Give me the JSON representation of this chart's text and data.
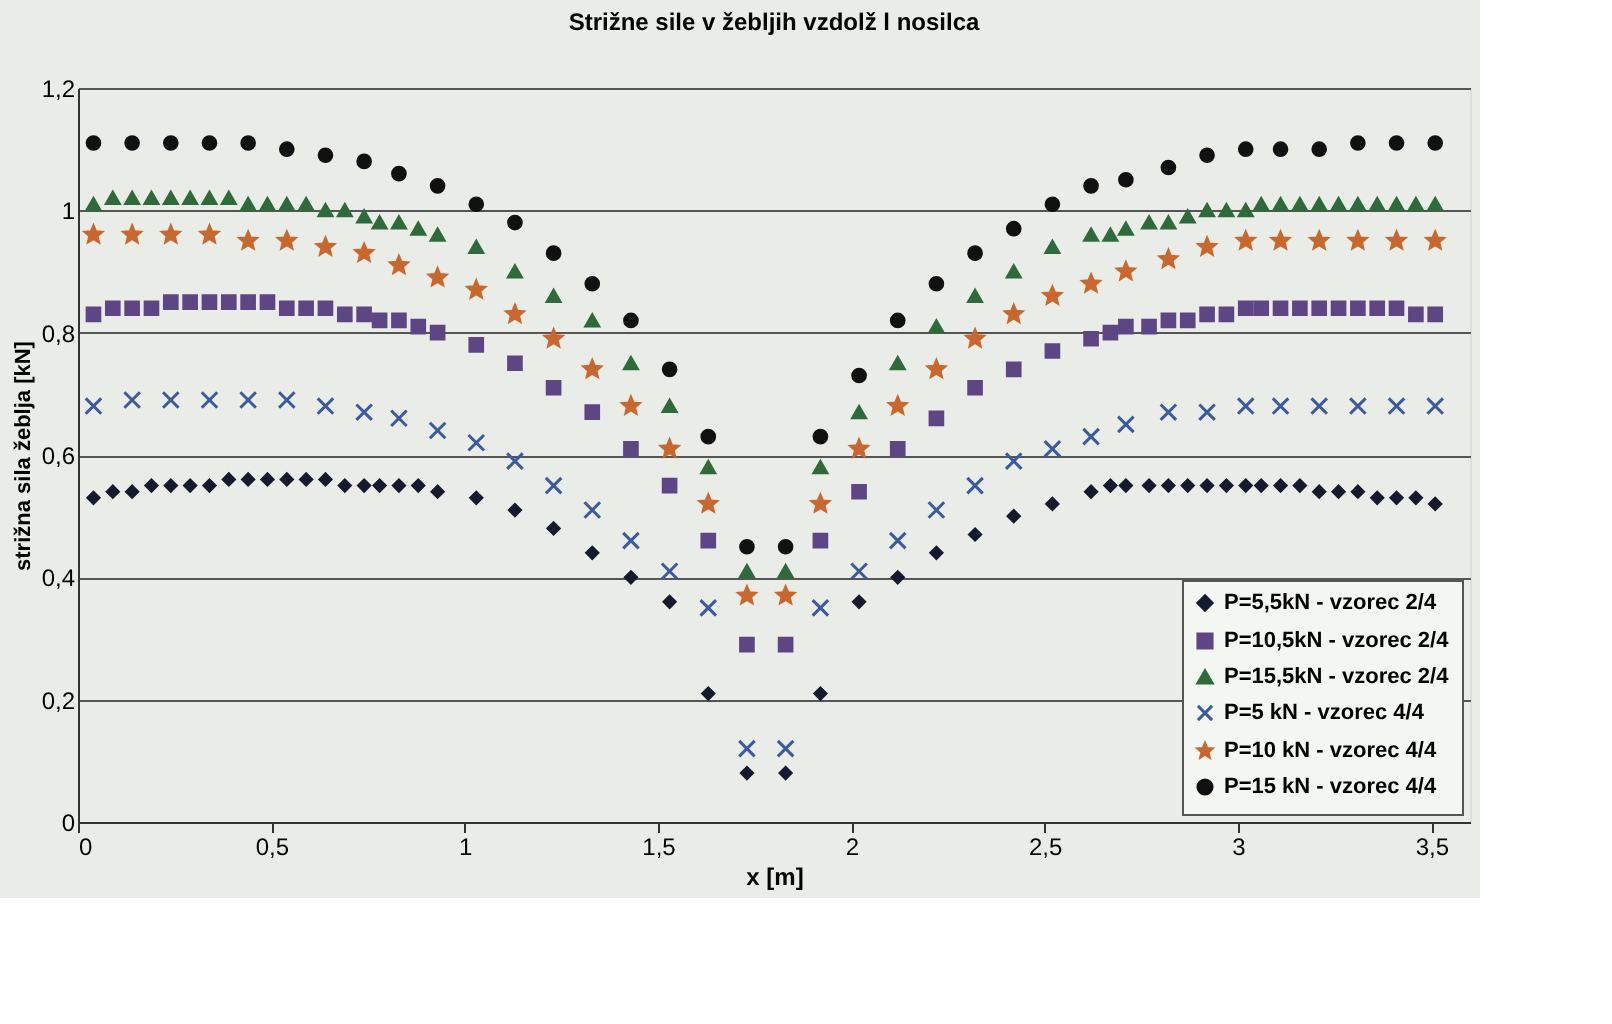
{
  "chart_data": {
    "type": "scatter",
    "title": "Strižne sile v žebljih vzdolž l nosilca",
    "xlabel": "x [m]",
    "ylabel": "strižna sila žeblja [kN]",
    "xlim": [
      0,
      3.6
    ],
    "ylim": [
      0,
      1.2
    ],
    "xticks": [
      0,
      {
        "value": 0.5,
        "label": "0,5"
      },
      1,
      {
        "value": 1.5,
        "label": "1,5"
      },
      2,
      {
        "value": 2.5,
        "label": "2,5"
      },
      3,
      {
        "value": 3.5,
        "label": "3,5"
      }
    ],
    "yticks": [
      0,
      {
        "value": 0.2,
        "label": "0,2"
      },
      {
        "value": 0.4,
        "label": "0,4"
      },
      {
        "value": 0.6,
        "label": "0,6"
      },
      {
        "value": 0.8,
        "label": "0,8"
      },
      1,
      {
        "value": 1.2,
        "label": "1,2"
      }
    ],
    "grid": "y",
    "legend": "bottom right",
    "series": [
      {
        "name": "P=5,5kN - vzorec 2/4",
        "color": "#151a2e",
        "marker": "diamond",
        "x": [
          0.04,
          0.09,
          0.14,
          0.19,
          0.24,
          0.29,
          0.34,
          0.39,
          0.44,
          0.49,
          0.54,
          0.59,
          0.64,
          0.69,
          0.74,
          0.78,
          0.83,
          0.88,
          0.93,
          1.03,
          1.13,
          1.23,
          1.33,
          1.43,
          1.53,
          1.63,
          1.73,
          1.83,
          1.92,
          2.02,
          2.12,
          2.22,
          2.32,
          2.42,
          2.52,
          2.62,
          2.67,
          2.71,
          2.77,
          2.82,
          2.87,
          2.92,
          2.97,
          3.02,
          3.06,
          3.11,
          3.16,
          3.21,
          3.26,
          3.31,
          3.36,
          3.41,
          3.46,
          3.51
        ],
        "values": [
          0.53,
          0.54,
          0.54,
          0.55,
          0.55,
          0.55,
          0.55,
          0.56,
          0.56,
          0.56,
          0.56,
          0.56,
          0.56,
          0.55,
          0.55,
          0.55,
          0.55,
          0.55,
          0.54,
          0.53,
          0.51,
          0.48,
          0.44,
          0.4,
          0.36,
          0.21,
          0.08,
          0.08,
          0.21,
          0.36,
          0.4,
          0.44,
          0.47,
          0.5,
          0.52,
          0.54,
          0.55,
          0.55,
          0.55,
          0.55,
          0.55,
          0.55,
          0.55,
          0.55,
          0.55,
          0.55,
          0.55,
          0.54,
          0.54,
          0.54,
          0.53,
          0.53,
          0.53,
          0.52
        ]
      },
      {
        "name": "P=10,5kN - vzorec 2/4",
        "color": "#5e4685",
        "marker": "square",
        "x": [
          0.04,
          0.09,
          0.14,
          0.19,
          0.24,
          0.29,
          0.34,
          0.39,
          0.44,
          0.49,
          0.54,
          0.59,
          0.64,
          0.69,
          0.74,
          0.78,
          0.83,
          0.88,
          0.93,
          1.03,
          1.13,
          1.23,
          1.33,
          1.43,
          1.53,
          1.63,
          1.73,
          1.83,
          1.92,
          2.02,
          2.12,
          2.22,
          2.32,
          2.42,
          2.52,
          2.62,
          2.67,
          2.71,
          2.77,
          2.82,
          2.87,
          2.92,
          2.97,
          3.02,
          3.06,
          3.11,
          3.16,
          3.21,
          3.26,
          3.31,
          3.36,
          3.41,
          3.46,
          3.51
        ],
        "values": [
          0.83,
          0.84,
          0.84,
          0.84,
          0.85,
          0.85,
          0.85,
          0.85,
          0.85,
          0.85,
          0.84,
          0.84,
          0.84,
          0.83,
          0.83,
          0.82,
          0.82,
          0.81,
          0.8,
          0.78,
          0.75,
          0.71,
          0.67,
          0.61,
          0.55,
          0.46,
          0.29,
          0.29,
          0.46,
          0.54,
          0.61,
          0.66,
          0.71,
          0.74,
          0.77,
          0.79,
          0.8,
          0.81,
          0.81,
          0.82,
          0.82,
          0.83,
          0.83,
          0.84,
          0.84,
          0.84,
          0.84,
          0.84,
          0.84,
          0.84,
          0.84,
          0.84,
          0.83,
          0.83
        ]
      },
      {
        "name": "P=15,5kN - vzorec 2/4",
        "color": "#2f6b3a",
        "marker": "triangle",
        "x": [
          0.04,
          0.09,
          0.14,
          0.19,
          0.24,
          0.29,
          0.34,
          0.39,
          0.44,
          0.49,
          0.54,
          0.59,
          0.64,
          0.69,
          0.74,
          0.78,
          0.83,
          0.88,
          0.93,
          1.03,
          1.13,
          1.23,
          1.33,
          1.43,
          1.53,
          1.63,
          1.73,
          1.83,
          1.92,
          2.02,
          2.12,
          2.22,
          2.32,
          2.42,
          2.52,
          2.62,
          2.67,
          2.71,
          2.77,
          2.82,
          2.87,
          2.92,
          2.97,
          3.02,
          3.06,
          3.11,
          3.16,
          3.21,
          3.26,
          3.31,
          3.36,
          3.41,
          3.46,
          3.51
        ],
        "values": [
          1.01,
          1.02,
          1.02,
          1.02,
          1.02,
          1.02,
          1.02,
          1.02,
          1.01,
          1.01,
          1.01,
          1.01,
          1.0,
          1.0,
          0.99,
          0.98,
          0.98,
          0.97,
          0.96,
          0.94,
          0.9,
          0.86,
          0.82,
          0.75,
          0.68,
          0.58,
          0.41,
          0.41,
          0.58,
          0.67,
          0.75,
          0.81,
          0.86,
          0.9,
          0.94,
          0.96,
          0.96,
          0.97,
          0.98,
          0.98,
          0.99,
          1.0,
          1.0,
          1.0,
          1.01,
          1.01,
          1.01,
          1.01,
          1.01,
          1.01,
          1.01,
          1.01,
          1.01,
          1.01
        ]
      },
      {
        "name": "P=5 kN - vzorec 4/4",
        "color": "#3c5a9e",
        "marker": "cross",
        "x": [
          0.04,
          0.14,
          0.24,
          0.34,
          0.44,
          0.54,
          0.64,
          0.74,
          0.83,
          0.93,
          1.03,
          1.13,
          1.23,
          1.33,
          1.43,
          1.53,
          1.63,
          1.73,
          1.83,
          1.92,
          2.02,
          2.12,
          2.22,
          2.32,
          2.42,
          2.52,
          2.62,
          2.71,
          2.82,
          2.92,
          3.02,
          3.11,
          3.21,
          3.31,
          3.41,
          3.51
        ],
        "values": [
          0.68,
          0.69,
          0.69,
          0.69,
          0.69,
          0.69,
          0.68,
          0.67,
          0.66,
          0.64,
          0.62,
          0.59,
          0.55,
          0.51,
          0.46,
          0.41,
          0.35,
          0.12,
          0.12,
          0.35,
          0.41,
          0.46,
          0.51,
          0.55,
          0.59,
          0.61,
          0.63,
          0.65,
          0.67,
          0.67,
          0.68,
          0.68,
          0.68,
          0.68,
          0.68,
          0.68
        ]
      },
      {
        "name": "P=10 kN - vzorec 4/4",
        "color": "#c8672e",
        "marker": "star",
        "x": [
          0.04,
          0.14,
          0.24,
          0.34,
          0.44,
          0.54,
          0.64,
          0.74,
          0.83,
          0.93,
          1.03,
          1.13,
          1.23,
          1.33,
          1.43,
          1.53,
          1.63,
          1.73,
          1.83,
          1.92,
          2.02,
          2.12,
          2.22,
          2.32,
          2.42,
          2.52,
          2.62,
          2.71,
          2.82,
          2.92,
          3.02,
          3.11,
          3.21,
          3.31,
          3.41,
          3.51
        ],
        "values": [
          0.96,
          0.96,
          0.96,
          0.96,
          0.95,
          0.95,
          0.94,
          0.93,
          0.91,
          0.89,
          0.87,
          0.83,
          0.79,
          0.74,
          0.68,
          0.61,
          0.52,
          0.37,
          0.37,
          0.52,
          0.61,
          0.68,
          0.74,
          0.79,
          0.83,
          0.86,
          0.88,
          0.9,
          0.92,
          0.94,
          0.95,
          0.95,
          0.95,
          0.95,
          0.95,
          0.95
        ]
      },
      {
        "name": "P=15 kN - vzorec 4/4",
        "color": "#111111",
        "marker": "circle",
        "x": [
          0.04,
          0.14,
          0.24,
          0.34,
          0.44,
          0.54,
          0.64,
          0.74,
          0.83,
          0.93,
          1.03,
          1.13,
          1.23,
          1.33,
          1.43,
          1.53,
          1.63,
          1.73,
          1.83,
          1.92,
          2.02,
          2.12,
          2.22,
          2.32,
          2.42,
          2.52,
          2.62,
          2.71,
          2.82,
          2.92,
          3.02,
          3.11,
          3.21,
          3.31,
          3.41,
          3.51
        ],
        "values": [
          1.11,
          1.11,
          1.11,
          1.11,
          1.11,
          1.1,
          1.09,
          1.08,
          1.06,
          1.04,
          1.01,
          0.98,
          0.93,
          0.88,
          0.82,
          0.74,
          0.63,
          0.45,
          0.45,
          0.63,
          0.73,
          0.82,
          0.88,
          0.93,
          0.97,
          1.01,
          1.04,
          1.05,
          1.07,
          1.09,
          1.1,
          1.1,
          1.1,
          1.11,
          1.11,
          1.11
        ]
      }
    ]
  }
}
